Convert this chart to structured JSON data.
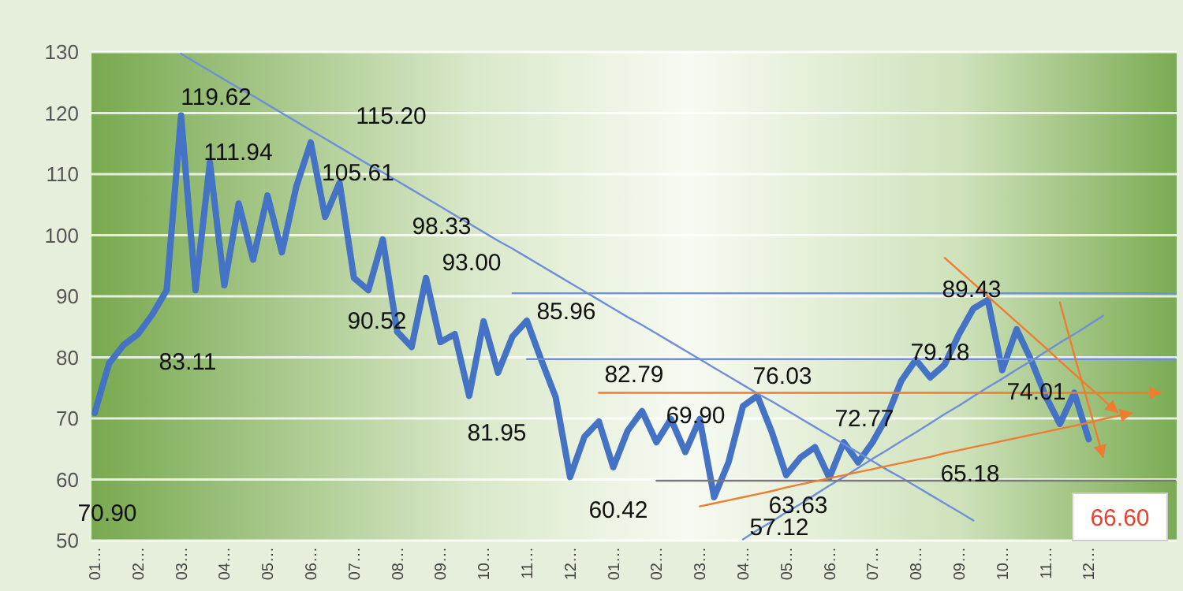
{
  "chart_data": {
    "type": "line",
    "categories": [
      "01…",
      null,
      null,
      "02…",
      null,
      null,
      "03…",
      null,
      null,
      "04…",
      null,
      null,
      "05…",
      null,
      null,
      "06…",
      null,
      null,
      "07…",
      null,
      null,
      "08…",
      null,
      null,
      "09…",
      null,
      null,
      "10…",
      null,
      null,
      "11…",
      null,
      null,
      "12…",
      null,
      null,
      "01…",
      null,
      null,
      "02…",
      null,
      null,
      "03…",
      null,
      null,
      "04…",
      null,
      null,
      "05…",
      null,
      null,
      "06…",
      null,
      null,
      "07…",
      null,
      null,
      "08…",
      null,
      null,
      "09…",
      null,
      null,
      "10…",
      null,
      null,
      "11…",
      null,
      null,
      "12…",
      null,
      null,
      null,
      null,
      null,
      null
    ],
    "series": [
      {
        "color": "#4472c4",
        "values": [
          70.9,
          79,
          82,
          83.8,
          87,
          91,
          119.6,
          91,
          111.9,
          91.8,
          105.2,
          96,
          106.5,
          97.2,
          108,
          115.2,
          103,
          108.6,
          93,
          91,
          99.3,
          84.2,
          81.7,
          93,
          82.5,
          83.8,
          73.7,
          85.9,
          77.5,
          83.4,
          86,
          79.6,
          73.5,
          60.4,
          67,
          69.5,
          62,
          68,
          71.2,
          66.1,
          69.9,
          64.5,
          69.9,
          57.1,
          62.8,
          72,
          73.7,
          67.8,
          60.7,
          63.6,
          65.3,
          60.3,
          66.1,
          62.8,
          66.1,
          70.3,
          76.2,
          79.6,
          76.7,
          78.8,
          83.8,
          88,
          89.4,
          77.9,
          84.6,
          79.6,
          73.7,
          69.1,
          74.2,
          66.6,
          null,
          null,
          null,
          null,
          null,
          null
        ]
      },
      {
        "color": "#6f8fd6",
        "values": [
          null,
          null,
          null,
          null,
          null,
          null,
          129.7,
          128.3,
          126.9,
          125.5,
          124.1,
          122.8,
          121.4,
          120.0,
          118.6,
          117.2,
          115.8,
          114.4,
          113.0,
          111.6,
          110.3,
          108.9,
          107.5,
          106.1,
          104.7,
          103.3,
          101.9,
          100.5,
          99.1,
          97.8,
          96.4,
          95.0,
          93.6,
          92.2,
          90.8,
          89.4,
          88.0,
          86.6,
          85.3,
          83.9,
          82.5,
          81.1,
          79.7,
          78.3,
          76.9,
          75.5,
          74.1,
          72.8,
          71.4,
          70.0,
          68.6,
          67.2,
          65.8,
          64.4,
          63.0,
          61.6,
          60.3,
          58.9,
          57.5,
          56.1,
          54.7,
          53.3,
          null,
          null,
          null,
          null,
          null,
          null,
          null,
          null,
          null,
          null,
          null,
          null,
          null,
          null
        ]
      },
      {
        "color": "#6f8fd6",
        "values": [
          null,
          null,
          null,
          null,
          null,
          null,
          null,
          null,
          null,
          null,
          null,
          null,
          null,
          null,
          null,
          null,
          null,
          null,
          null,
          null,
          null,
          null,
          null,
          null,
          null,
          null,
          null,
          null,
          null,
          90.5,
          90.5,
          90.5,
          90.5,
          90.5,
          90.5,
          90.5,
          90.5,
          90.5,
          90.5,
          90.5,
          90.5,
          90.5,
          90.5,
          90.5,
          90.5,
          90.5,
          90.5,
          90.5,
          90.5,
          90.5,
          90.5,
          90.5,
          90.5,
          90.5,
          90.5,
          90.5,
          90.5,
          90.5,
          90.5,
          90.5,
          90.5,
          90.5,
          90.5,
          90.5,
          90.5,
          90.5,
          90.5,
          90.5,
          90.5,
          90.5,
          90.5,
          90.5,
          90.5,
          90.5,
          90.5,
          90.5
        ]
      },
      {
        "color": "#6f8fd6",
        "values": [
          null,
          null,
          null,
          null,
          null,
          null,
          null,
          null,
          null,
          null,
          null,
          null,
          null,
          null,
          null,
          null,
          null,
          null,
          null,
          null,
          null,
          null,
          null,
          null,
          null,
          null,
          null,
          null,
          null,
          null,
          79.7,
          79.7,
          79.7,
          79.7,
          79.7,
          79.7,
          79.7,
          79.7,
          79.7,
          79.7,
          79.7,
          79.7,
          79.7,
          79.7,
          79.7,
          79.7,
          79.7,
          79.7,
          79.7,
          79.7,
          79.7,
          79.7,
          79.7,
          79.7,
          79.7,
          79.7,
          79.7,
          79.7,
          79.7,
          79.7,
          79.7,
          79.7,
          79.7,
          79.7,
          79.7,
          79.7,
          79.7,
          79.7,
          79.7,
          79.7,
          79.7,
          79.7,
          79.7,
          79.7,
          79.7,
          79.7
        ]
      },
      {
        "color": "#6f8fd6",
        "values": [
          null,
          null,
          null,
          null,
          null,
          null,
          null,
          null,
          null,
          null,
          null,
          null,
          null,
          null,
          null,
          null,
          null,
          null,
          null,
          null,
          null,
          null,
          null,
          null,
          null,
          null,
          null,
          null,
          null,
          null,
          null,
          null,
          null,
          null,
          null,
          null,
          null,
          null,
          null,
          null,
          null,
          null,
          null,
          null,
          null,
          50.2,
          51.7,
          53.1,
          54.6,
          56.0,
          57.5,
          59.0,
          60.4,
          61.9,
          63.4,
          64.8,
          66.3,
          67.7,
          69.2,
          70.7,
          72.1,
          73.6,
          75.1,
          76.5,
          78.0,
          79.4,
          80.9,
          82.4,
          83.8,
          85.3,
          86.8,
          null,
          null,
          null,
          null,
          null
        ]
      },
      {
        "color": "#7a7a7a",
        "values": [
          null,
          null,
          null,
          null,
          null,
          null,
          null,
          null,
          null,
          null,
          null,
          null,
          null,
          null,
          null,
          null,
          null,
          null,
          null,
          null,
          null,
          null,
          null,
          null,
          null,
          null,
          null,
          null,
          null,
          null,
          null,
          null,
          null,
          null,
          null,
          null,
          null,
          null,
          null,
          59.8,
          59.8,
          59.8,
          59.8,
          59.8,
          59.8,
          59.8,
          59.8,
          59.8,
          59.8,
          59.8,
          59.8,
          59.8,
          59.8,
          59.8,
          59.8,
          59.8,
          59.8,
          59.8,
          59.8,
          59.8,
          59.8,
          59.8,
          59.8,
          59.8,
          59.8,
          59.8,
          59.8,
          59.8,
          59.8,
          59.8,
          59.8,
          59.8,
          59.8,
          59.8,
          59.8,
          59.8
        ]
      },
      {
        "color": "#ed7d31",
        "values": [
          null,
          null,
          null,
          null,
          null,
          null,
          null,
          null,
          null,
          null,
          null,
          null,
          null,
          null,
          null,
          null,
          null,
          null,
          null,
          null,
          null,
          null,
          null,
          null,
          null,
          null,
          null,
          null,
          null,
          null,
          null,
          null,
          null,
          null,
          null,
          74.2,
          74.2,
          74.2,
          74.2,
          74.2,
          74.2,
          74.2,
          74.2,
          74.2,
          74.2,
          74.2,
          74.2,
          74.2,
          74.2,
          74.2,
          74.2,
          74.2,
          74.2,
          74.2,
          74.2,
          74.2,
          74.2,
          74.2,
          74.2,
          74.2,
          74.2,
          74.2,
          74.2,
          74.2,
          74.2,
          74.2,
          74.2,
          74.2,
          74.2,
          74.2,
          74.2,
          74.2,
          74.2,
          74.2,
          74.2,
          null
        ]
      },
      {
        "color": "#ed7d31",
        "values": [
          null,
          null,
          null,
          null,
          null,
          null,
          null,
          null,
          null,
          null,
          null,
          null,
          null,
          null,
          null,
          null,
          null,
          null,
          null,
          null,
          null,
          null,
          null,
          null,
          null,
          null,
          null,
          null,
          null,
          null,
          null,
          null,
          null,
          null,
          null,
          null,
          null,
          null,
          null,
          null,
          null,
          null,
          55.6,
          56.1,
          56.6,
          57.1,
          57.6,
          58.1,
          58.7,
          59.2,
          59.7,
          60.2,
          60.7,
          61.2,
          61.7,
          62.2,
          62.7,
          63.2,
          63.7,
          64.3,
          64.8,
          65.3,
          65.8,
          66.3,
          66.8,
          67.3,
          67.8,
          68.3,
          68.8,
          69.3,
          69.9,
          70.4,
          70.9,
          null,
          null,
          null
        ]
      },
      {
        "color": "#ed7d31",
        "values": [
          null,
          null,
          null,
          null,
          null,
          null,
          null,
          null,
          null,
          null,
          null,
          null,
          null,
          null,
          null,
          null,
          null,
          null,
          null,
          null,
          null,
          null,
          null,
          null,
          null,
          null,
          null,
          null,
          null,
          null,
          null,
          null,
          null,
          null,
          null,
          null,
          null,
          null,
          null,
          null,
          null,
          null,
          null,
          null,
          null,
          null,
          null,
          null,
          null,
          null,
          null,
          null,
          null,
          null,
          null,
          null,
          null,
          null,
          null,
          96.3,
          94.2,
          92.1,
          90.0,
          87.9,
          85.8,
          83.7,
          81.6,
          79.4,
          77.3,
          75.2,
          73.1,
          71.0,
          null,
          null,
          null,
          null
        ]
      },
      {
        "color": "#ed7d31",
        "values": [
          null,
          null,
          null,
          null,
          null,
          null,
          null,
          null,
          null,
          null,
          null,
          null,
          null,
          null,
          null,
          null,
          null,
          null,
          null,
          null,
          null,
          null,
          null,
          null,
          null,
          null,
          null,
          null,
          null,
          null,
          null,
          null,
          null,
          null,
          null,
          null,
          null,
          null,
          null,
          null,
          null,
          null,
          null,
          null,
          null,
          null,
          null,
          null,
          null,
          null,
          null,
          null,
          null,
          null,
          null,
          null,
          null,
          null,
          null,
          null,
          null,
          null,
          null,
          null,
          null,
          null,
          null,
          89.0,
          80.4,
          72.1,
          63.7,
          null,
          null,
          null,
          null,
          null
        ]
      }
    ],
    "ylim": [
      50,
      130
    ],
    "yticks": [
      50,
      60,
      70,
      80,
      90,
      100,
      110,
      120,
      130
    ],
    "grid": "y",
    "marker": "none",
    "line_style": "solid",
    "annotations": [
      "70.90",
      "83.11",
      "119.62",
      "111.94",
      "115.20",
      "105.61",
      "98.33",
      "93.00",
      "90.52",
      "85.96",
      "81.95",
      "82.79",
      "60.42",
      "69.90",
      "76.03",
      "57.12",
      "72.77",
      "63.63",
      "79.18",
      "89.43",
      "74.01",
      "65.18",
      "66.60"
    ]
  }
}
